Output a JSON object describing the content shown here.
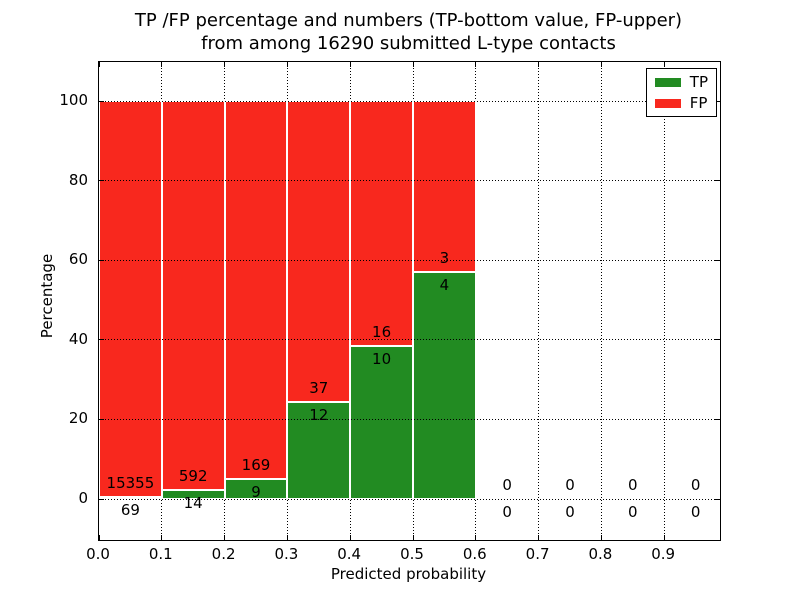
{
  "title": {
    "line1": "TP /FP percentage and numbers (TP-bottom value, FP-upper)",
    "line2": "from among 16290 submitted L-type contacts"
  },
  "chart_data": {
    "type": "bar",
    "subtype": "stacked-percentage-histogram",
    "title": "TP /FP percentage and numbers (TP-bottom value, FP-upper)\nfrom among 16290 submitted L-type contacts",
    "xlabel": "Predicted probability",
    "ylabel": "Percentage",
    "total_submitted": 16290,
    "bin_width": 0.1,
    "bins_x_start": [
      0.0,
      0.1,
      0.2,
      0.3,
      0.4,
      0.5,
      0.6,
      0.7,
      0.8,
      0.9
    ],
    "series": [
      {
        "name": "TP",
        "color": "#228b22",
        "counts": [
          69,
          14,
          9,
          12,
          10,
          4,
          0,
          0,
          0,
          0
        ]
      },
      {
        "name": "FP",
        "color": "#f8281e",
        "counts": [
          15355,
          592,
          169,
          37,
          16,
          3,
          0,
          0,
          0,
          0
        ]
      }
    ],
    "bars_normalized_to_100pct": true,
    "annotation_note": "TP count shown below segment boundary, FP count shown above",
    "x_tick_labels": [
      "0.0",
      "0.1",
      "0.2",
      "0.3",
      "0.4",
      "0.5",
      "0.6",
      "0.7",
      "0.8",
      "0.9"
    ],
    "y_ticks": [
      0,
      20,
      40,
      60,
      80,
      100
    ],
    "y_tick_labels": [
      "0",
      "20",
      "40",
      "60",
      "80",
      "100"
    ],
    "xlim": [
      0.0,
      0.99
    ],
    "ylim": [
      -10,
      110
    ],
    "grid": true,
    "grid_style": "dotted",
    "legend_position": "upper right"
  },
  "colors": {
    "tp": "#228b22",
    "fp": "#f8281e",
    "background": "#ffffff",
    "text": "#000000",
    "bar_edge": "#ffffff"
  }
}
